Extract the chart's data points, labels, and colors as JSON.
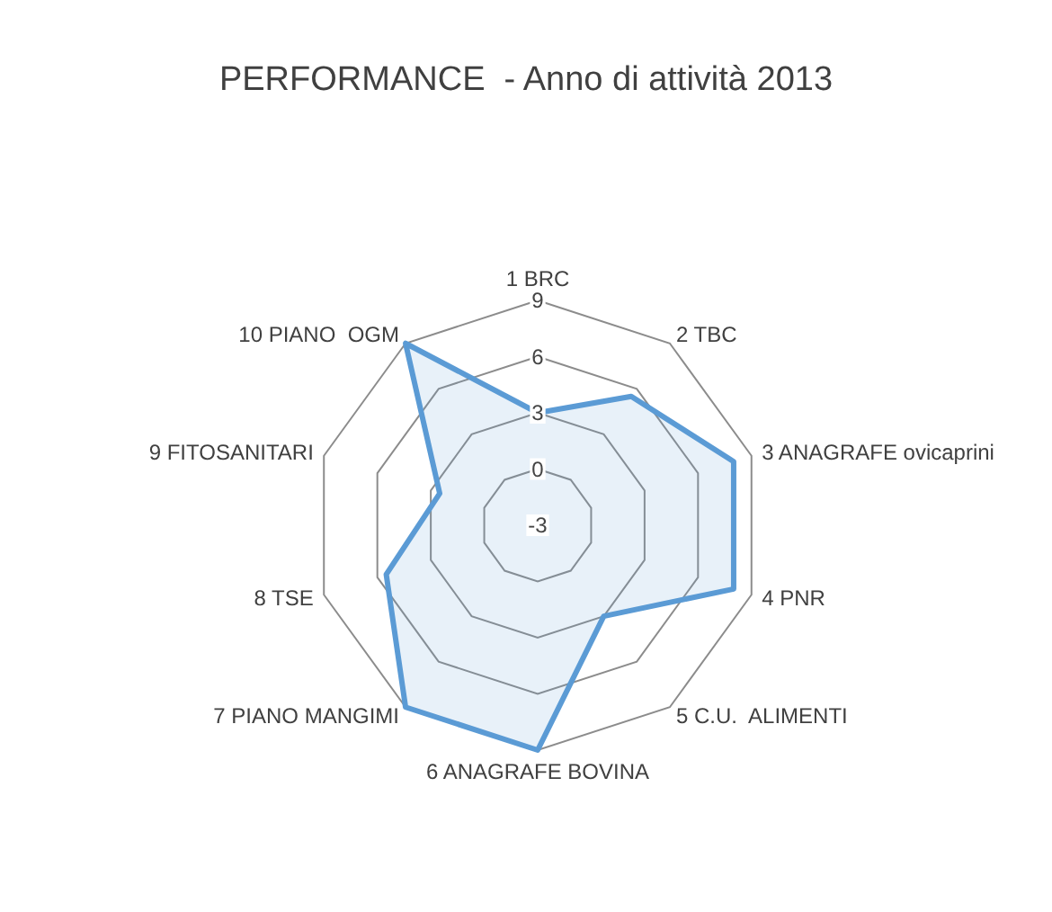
{
  "chart_data": {
    "type": "radar",
    "title": "PERFORMANCE  - Anno di attività 2013",
    "categories": [
      "1 BRC",
      "2 TBC",
      "3 ANAGRAFE ovicaprini",
      "4 PNR",
      "5 C.U.  ALIMENTI",
      "6 ANAGRAFE BOVINA",
      "7 PIANO MANGIMI",
      "8 TSE",
      "9 FITOSANITARI",
      "10 PIANO  OGM"
    ],
    "series": [
      {
        "color": "#5b9bd5",
        "values": [
          3,
          5.5,
          8,
          8,
          3,
          9,
          9,
          5.5,
          2.5,
          9
        ]
      }
    ],
    "ylim": [
      -3,
      9
    ],
    "yticks": [
      -3,
      0,
      3,
      6,
      9
    ],
    "grid": true,
    "marker": "none"
  }
}
